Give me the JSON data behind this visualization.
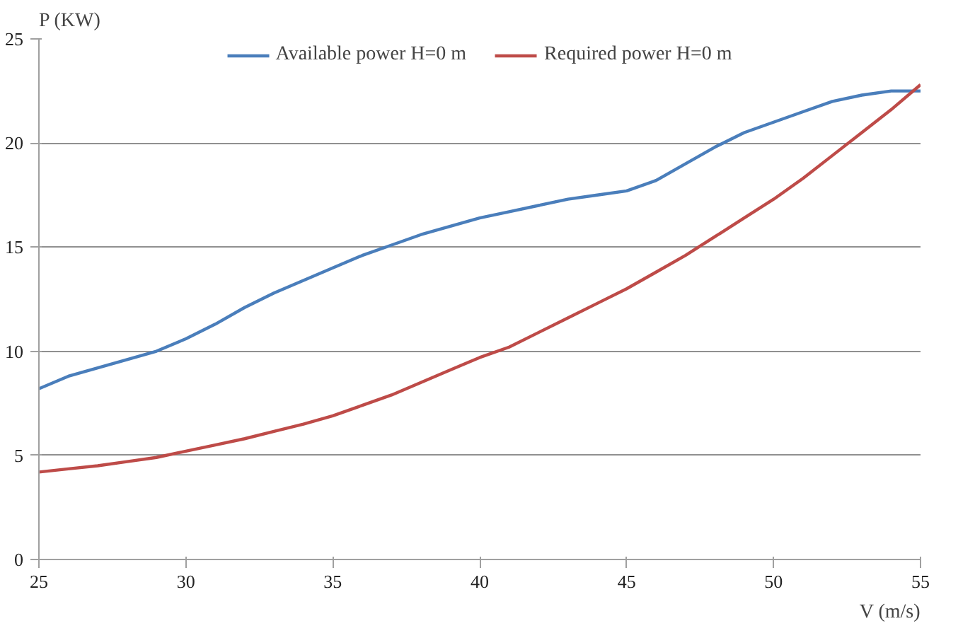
{
  "chart_data": {
    "type": "line",
    "xlabel": "V (m/s)",
    "ylabel": "P (KW)",
    "x": [
      25,
      26,
      27,
      28,
      29,
      30,
      31,
      32,
      33,
      34,
      35,
      36,
      37,
      38,
      39,
      40,
      41,
      42,
      43,
      44,
      45,
      46,
      47,
      48,
      49,
      50,
      51,
      52,
      53,
      54,
      55
    ],
    "series": [
      {
        "name": "Available power H=0 m",
        "color": "#4a7ebb",
        "values": [
          8.2,
          8.8,
          9.2,
          9.6,
          10.0,
          10.6,
          11.3,
          12.1,
          12.8,
          13.4,
          14.0,
          14.6,
          15.1,
          15.6,
          16.0,
          16.4,
          16.7,
          17.0,
          17.3,
          17.5,
          17.7,
          18.2,
          19.0,
          19.8,
          20.5,
          21.0,
          21.5,
          22.0,
          22.3,
          22.5,
          22.5
        ]
      },
      {
        "name": "Required power H=0 m",
        "color": "#be4b48",
        "values": [
          4.2,
          4.35,
          4.5,
          4.7,
          4.9,
          5.2,
          5.5,
          5.8,
          6.15,
          6.5,
          6.9,
          7.4,
          7.9,
          8.5,
          9.1,
          9.7,
          10.2,
          10.9,
          11.6,
          12.3,
          13.0,
          13.8,
          14.6,
          15.5,
          16.4,
          17.3,
          18.3,
          19.4,
          20.5,
          21.6,
          22.8
        ]
      }
    ],
    "xlim": [
      25,
      55
    ],
    "xticks": [
      25,
      30,
      35,
      40,
      45,
      50,
      55
    ],
    "ylim": [
      0,
      25
    ],
    "yticks": [
      0,
      5,
      10,
      15,
      20,
      25
    ],
    "grid": "y",
    "legend": "top",
    "marker": "none",
    "line_style": "solid"
  }
}
